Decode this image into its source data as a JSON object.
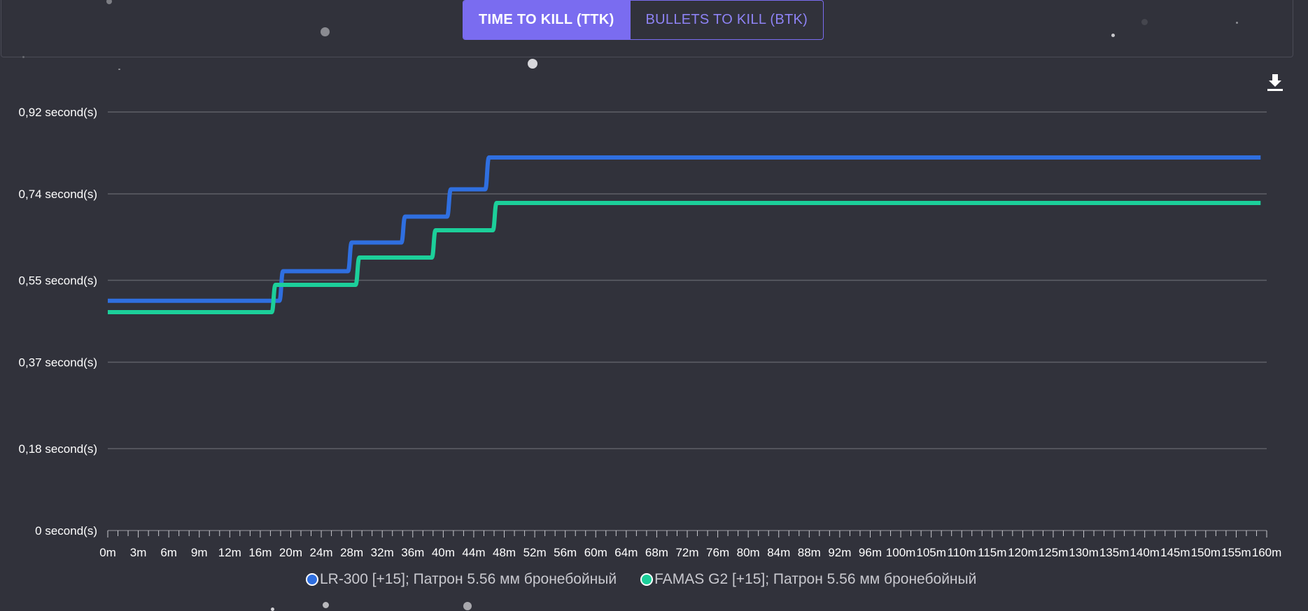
{
  "tabs": [
    {
      "label": "TIME TO KILL (TTK)",
      "active": true
    },
    {
      "label": "BULLETS TO KILL (BTK)",
      "active": false
    }
  ],
  "download": {
    "icon": "download-icon"
  },
  "colors": {
    "background": "#31323b",
    "accent": "#7a6cf0",
    "series_1": "#2f6fe0",
    "series_2": "#1ccf9a",
    "grid": "#5f6068"
  },
  "chart_data": {
    "type": "line",
    "y_tick_labels": [
      "0 second(s)",
      "0,18 second(s)",
      "0,37 second(s)",
      "0,55 second(s)",
      "0,74 second(s)",
      "0,92 second(s)"
    ],
    "y_ticks": [
      0,
      0.18,
      0.37,
      0.55,
      0.74,
      0.92
    ],
    "ylim": [
      0,
      0.92
    ],
    "x_tick_labels": [
      "0m",
      "3m",
      "6m",
      "9m",
      "12m",
      "16m",
      "20m",
      "24m",
      "28m",
      "32m",
      "36m",
      "40m",
      "44m",
      "48m",
      "52m",
      "56m",
      "60m",
      "64m",
      "68m",
      "72m",
      "76m",
      "80m",
      "84m",
      "88m",
      "92m",
      "96m",
      "100m",
      "105m",
      "110m",
      "115m",
      "120m",
      "125m",
      "130m",
      "135m",
      "140m",
      "145m",
      "150m",
      "155m",
      "160m"
    ],
    "x_tick_values": [
      0,
      3,
      6,
      9,
      12,
      16,
      20,
      24,
      28,
      32,
      36,
      40,
      44,
      48,
      52,
      56,
      60,
      64,
      68,
      72,
      76,
      80,
      84,
      88,
      92,
      96,
      100,
      105,
      110,
      115,
      120,
      125,
      130,
      135,
      140,
      145,
      150,
      155,
      160
    ],
    "x_unit": "m",
    "grid": true,
    "legend_position": "bottom",
    "series": [
      {
        "name": "LR-300 [+15]; Патрон 5.56 мм бронебойный",
        "color": "#2f6fe0",
        "points": [
          [
            0,
            0.505
          ],
          [
            18.5,
            0.505
          ],
          [
            19,
            0.57
          ],
          [
            27.5,
            0.57
          ],
          [
            28,
            0.633
          ],
          [
            34.5,
            0.633
          ],
          [
            35,
            0.69
          ],
          [
            40.5,
            0.69
          ],
          [
            41,
            0.75
          ],
          [
            45.5,
            0.75
          ],
          [
            46,
            0.82
          ],
          [
            159,
            0.82
          ]
        ]
      },
      {
        "name": "FAMAS G2 [+15]; Патрон 5.56 мм бронебойный",
        "color": "#1ccf9a",
        "points": [
          [
            0,
            0.48
          ],
          [
            17.5,
            0.48
          ],
          [
            18,
            0.54
          ],
          [
            28.5,
            0.54
          ],
          [
            29,
            0.6
          ],
          [
            38.5,
            0.6
          ],
          [
            39,
            0.66
          ],
          [
            46.5,
            0.66
          ],
          [
            47,
            0.72
          ],
          [
            159,
            0.72
          ]
        ]
      }
    ]
  }
}
